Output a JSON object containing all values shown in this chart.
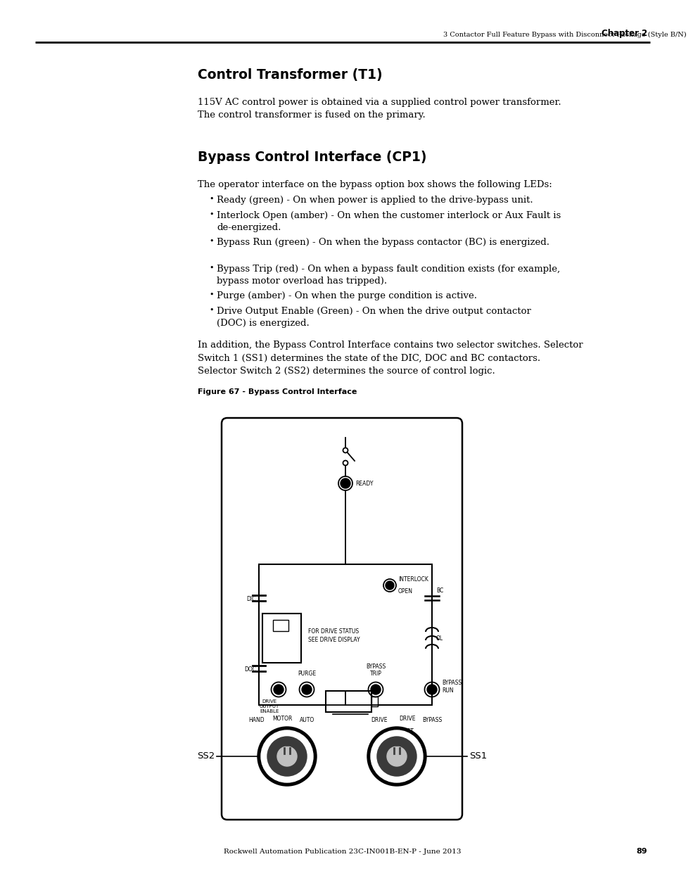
{
  "page_bg": "#ffffff",
  "header_text": "3 Contactor Full Feature Bypass with Disconnect Package (Style B/N)",
  "header_chapter": "Chapter 2",
  "footer_text": "Rockwell Automation Publication 23C-IN001B-EN-P - June 2013",
  "footer_page": "89",
  "section1_title": "Control Transformer (T1)",
  "section1_body": "115V AC control power is obtained via a supplied control power transformer.\nThe control transformer is fused on the primary.",
  "section2_title": "Bypass Control Interface (CP1)",
  "section2_intro": "The operator interface on the bypass option box shows the following LEDs:",
  "bullets": [
    "Ready (green) - On when power is applied to the drive-bypass unit.",
    "Interlock Open (amber) - On when the customer interlock or Aux Fault is\n    de-energized.",
    "Bypass Run (green) - On when the bypass contactor (BC) is energized.",
    "Bypass Trip (red) - On when a bypass fault condition exists (for example,\n    bypass motor overload has tripped).",
    "Purge (amber) - On when the purge condition is active.",
    "Drive Output Enable (Green) - On when the drive output contactor\n    (DOC) is energized."
  ],
  "section2_closing": "In addition, the Bypass Control Interface contains two selector switches. Selector\nSwitch 1 (SS1) determines the state of the DIC, DOC and BC contactors.\nSelector Switch 2 (SS2) determines the source of control logic.",
  "figure_caption": "Figure 67 - Bypass Control Interface"
}
